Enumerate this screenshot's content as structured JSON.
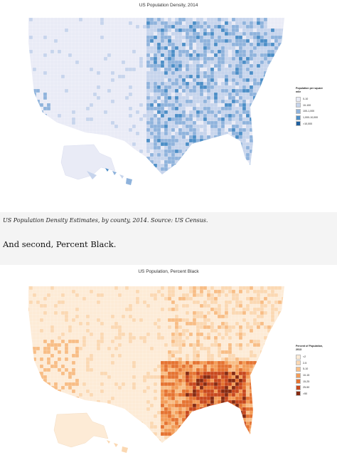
{
  "maps": {
    "density": {
      "title": "US Population Density, 2014",
      "legend_title": "Population per square mile",
      "legend": [
        {
          "label": "0-10",
          "color": "#e9ebf6"
        },
        {
          "label": "10-100",
          "color": "#c6d4ec"
        },
        {
          "label": "100-1,000",
          "color": "#8fb3dc"
        },
        {
          "label": "1,000-10,000",
          "color": "#4c8ec7"
        },
        {
          "label": ">10,000",
          "color": "#1e5f9f"
        }
      ]
    },
    "black": {
      "title": "US Population, Percent Black",
      "legend_title": "Percent of Population, 2013",
      "legend": [
        {
          "label": "<2",
          "color": "#fdebd6"
        },
        {
          "label": "2-5",
          "color": "#fbd8b2"
        },
        {
          "label": "5-10",
          "color": "#f8bd85"
        },
        {
          "label": "10-15",
          "color": "#f39c57"
        },
        {
          "label": "15-25",
          "color": "#e57331"
        },
        {
          "label": "25-50",
          "color": "#c8481d"
        },
        {
          "label": ">50",
          "color": "#862a10"
        }
      ]
    }
  },
  "caption": "US Population Density Estimates, by county, 2014. Source: US Census.",
  "heading": "And second, Percent Black."
}
